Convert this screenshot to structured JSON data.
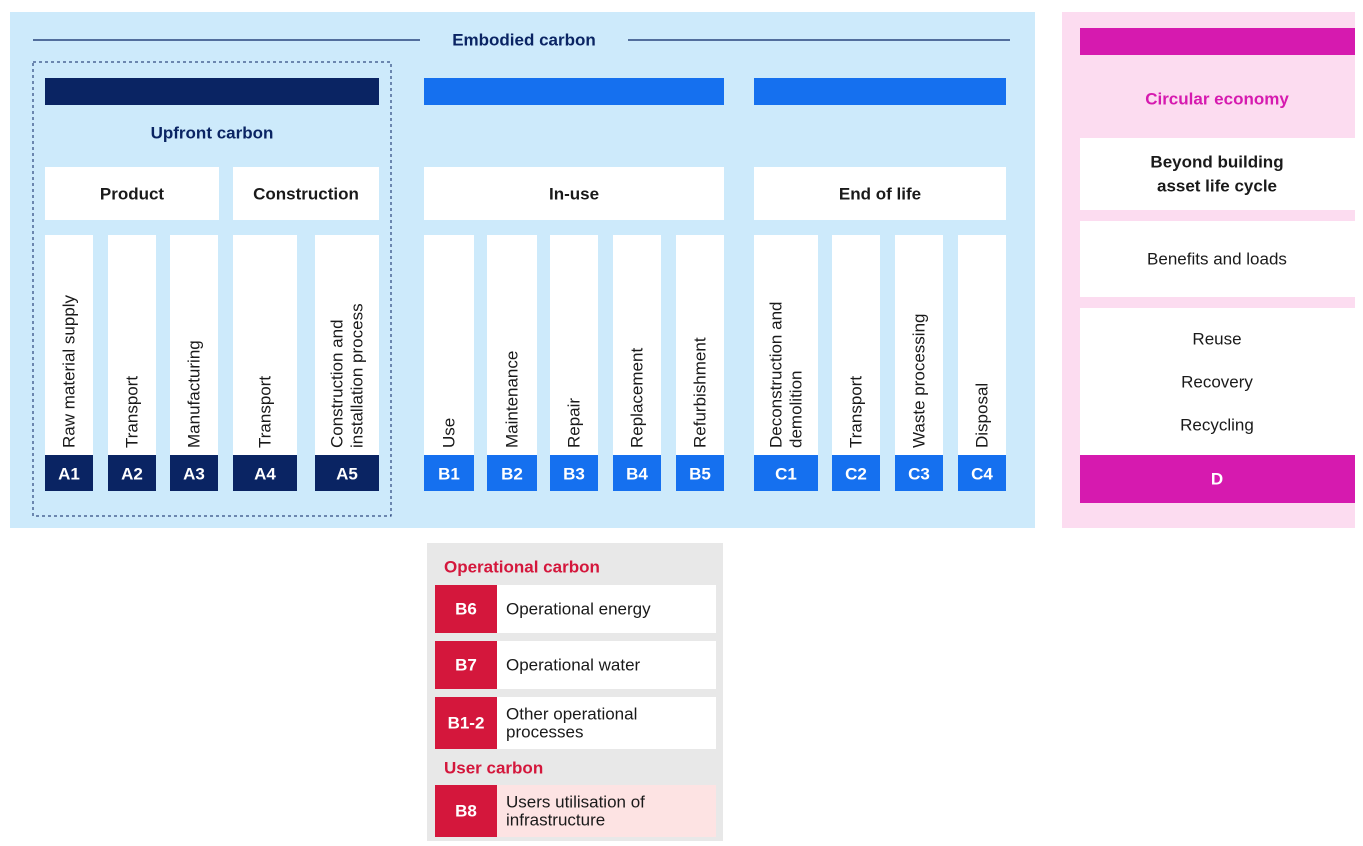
{
  "embodied_carbon": {
    "title": "Embodied carbon",
    "upfront_label": "Upfront carbon",
    "stages": [
      {
        "label": "Product",
        "modules": [
          {
            "code": "A1",
            "lines": [
              "Raw material supply"
            ]
          },
          {
            "code": "A2",
            "lines": [
              "Transport"
            ]
          },
          {
            "code": "A3",
            "lines": [
              "Manufacturing"
            ]
          }
        ]
      },
      {
        "label": "Construction",
        "modules": [
          {
            "code": "A4",
            "lines": [
              "Transport"
            ]
          },
          {
            "code": "A5",
            "lines": [
              "Construction and",
              "installation process"
            ]
          }
        ]
      },
      {
        "label": "In-use",
        "modules": [
          {
            "code": "B1",
            "lines": [
              "Use"
            ]
          },
          {
            "code": "B2",
            "lines": [
              "Maintenance"
            ]
          },
          {
            "code": "B3",
            "lines": [
              "Repair"
            ]
          },
          {
            "code": "B4",
            "lines": [
              "Replacement"
            ]
          },
          {
            "code": "B5",
            "lines": [
              "Refurbishment"
            ]
          }
        ]
      },
      {
        "label": "End of life",
        "modules": [
          {
            "code": "C1",
            "lines": [
              "Deconstruction and",
              "demolition"
            ]
          },
          {
            "code": "C2",
            "lines": [
              "Transport"
            ]
          },
          {
            "code": "C3",
            "lines": [
              "Waste processing"
            ]
          },
          {
            "code": "C4",
            "lines": [
              "Disposal"
            ]
          }
        ]
      }
    ]
  },
  "circular_economy": {
    "title": "Circular economy",
    "scope_lines": [
      "Beyond building",
      "asset life cycle"
    ],
    "description": "Benefits and loads",
    "items": [
      "Reuse",
      "Recovery",
      "Recycling"
    ],
    "code": "D"
  },
  "operational": {
    "title": "Operational carbon",
    "rows": [
      {
        "code": "B6",
        "lines": [
          "Operational energy"
        ]
      },
      {
        "code": "B7",
        "lines": [
          "Operational water"
        ]
      },
      {
        "code": "B1-2",
        "lines": [
          "Other operational",
          "processes"
        ]
      }
    ],
    "user_title": "User carbon",
    "user_rows": [
      {
        "code": "B8",
        "lines": [
          "Users utilisation of",
          "infrastructure"
        ]
      }
    ]
  }
}
